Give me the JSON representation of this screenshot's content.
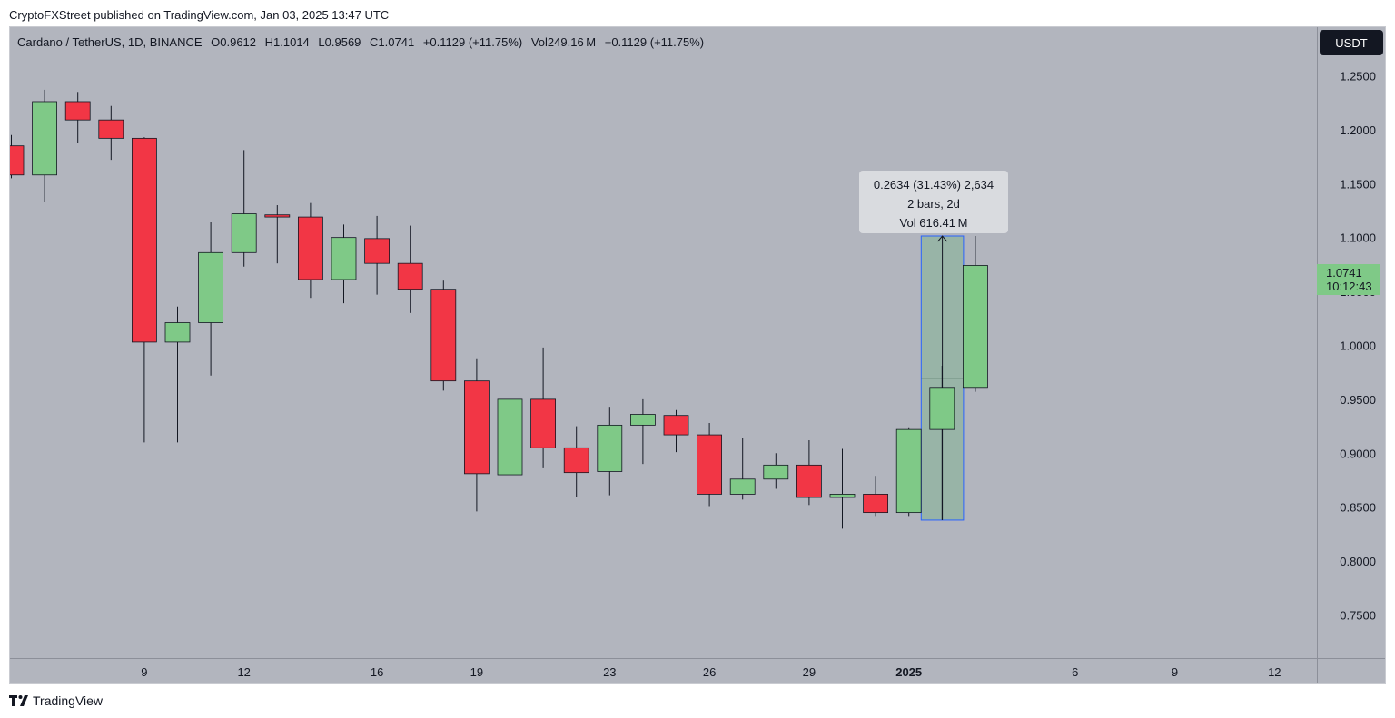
{
  "header": {
    "published_text": "CryptoFXStreet published on TradingView.com, Jan 03, 2025 13:47 UTC"
  },
  "legend": {
    "symbol": "Cardano / TetherUS, 1D, BINANCE",
    "open": "O0.9612",
    "high": "H1.1014",
    "low": "L0.9569",
    "close": "C1.0741",
    "change": "+0.1129 (+11.75%)",
    "volume": "Vol249.16 M",
    "volume_change": "+0.1129 (+11.75%)"
  },
  "currency_button": {
    "label": "USDT"
  },
  "last_price": {
    "value": "1.0741",
    "countdown": "10:12:43"
  },
  "measure_tool": {
    "line1": "0.2634 (31.43%) 2,634",
    "line2": "2 bars, 2d",
    "line3": "Vol 616.41 M"
  },
  "footer": {
    "brand": "TradingView"
  },
  "colors": {
    "background": "#b2b5be",
    "up": "#7fc987",
    "down": "#f23645",
    "wick": "#131722",
    "measure_fill": "#8fb49f",
    "measure_border": "#2962ff"
  },
  "chart_data": {
    "type": "candlestick",
    "title": "Cardano / TetherUS, 1D, BINANCE",
    "y_range": [
      0.71,
      1.295
    ],
    "y_ticks": [
      "1.2500",
      "1.2000",
      "1.1500",
      "1.1000",
      "1.0500",
      "1.0000",
      "0.9500",
      "0.9000",
      "0.8500",
      "0.8000",
      "0.7500"
    ],
    "x_tick_labels": [
      {
        "label": "9",
        "index": 4,
        "bold": false
      },
      {
        "label": "12",
        "index": 7,
        "bold": false
      },
      {
        "label": "16",
        "index": 11,
        "bold": false
      },
      {
        "label": "19",
        "index": 14,
        "bold": false
      },
      {
        "label": "23",
        "index": 18,
        "bold": false
      },
      {
        "label": "26",
        "index": 21,
        "bold": false
      },
      {
        "label": "29",
        "index": 24,
        "bold": false
      },
      {
        "label": "2025",
        "index": 27,
        "bold": true
      },
      {
        "label": "6",
        "index": 32,
        "bold": false
      },
      {
        "label": "9",
        "index": 35,
        "bold": false
      },
      {
        "label": "12",
        "index": 38,
        "bold": false
      }
    ],
    "candles": [
      {
        "open": 1.185,
        "high": 1.195,
        "low": 1.155,
        "close": 1.158
      },
      {
        "open": 1.158,
        "high": 1.237,
        "low": 1.133,
        "close": 1.226
      },
      {
        "open": 1.226,
        "high": 1.235,
        "low": 1.188,
        "close": 1.209
      },
      {
        "open": 1.209,
        "high": 1.222,
        "low": 1.172,
        "close": 1.192
      },
      {
        "open": 1.192,
        "high": 1.193,
        "low": 0.91,
        "close": 1.003
      },
      {
        "open": 1.003,
        "high": 1.036,
        "low": 0.91,
        "close": 1.021
      },
      {
        "open": 1.021,
        "high": 1.114,
        "low": 0.972,
        "close": 1.086
      },
      {
        "open": 1.086,
        "high": 1.181,
        "low": 1.073,
        "close": 1.122
      },
      {
        "open": 1.121,
        "high": 1.13,
        "low": 1.076,
        "close": 1.119
      },
      {
        "open": 1.119,
        "high": 1.132,
        "low": 1.044,
        "close": 1.061
      },
      {
        "open": 1.061,
        "high": 1.112,
        "low": 1.039,
        "close": 1.1
      },
      {
        "open": 1.099,
        "high": 1.12,
        "low": 1.047,
        "close": 1.076
      },
      {
        "open": 1.076,
        "high": 1.111,
        "low": 1.03,
        "close": 1.052
      },
      {
        "open": 1.052,
        "high": 1.06,
        "low": 0.958,
        "close": 0.967
      },
      {
        "open": 0.967,
        "high": 0.988,
        "low": 0.846,
        "close": 0.881
      },
      {
        "open": 0.88,
        "high": 0.959,
        "low": 0.761,
        "close": 0.95
      },
      {
        "open": 0.95,
        "high": 0.998,
        "low": 0.886,
        "close": 0.905
      },
      {
        "open": 0.905,
        "high": 0.925,
        "low": 0.859,
        "close": 0.882
      },
      {
        "open": 0.883,
        "high": 0.943,
        "low": 0.861,
        "close": 0.926
      },
      {
        "open": 0.926,
        "high": 0.95,
        "low": 0.89,
        "close": 0.936
      },
      {
        "open": 0.935,
        "high": 0.94,
        "low": 0.901,
        "close": 0.917
      },
      {
        "open": 0.917,
        "high": 0.928,
        "low": 0.851,
        "close": 0.862
      },
      {
        "open": 0.862,
        "high": 0.914,
        "low": 0.857,
        "close": 0.876
      },
      {
        "open": 0.876,
        "high": 0.9,
        "low": 0.867,
        "close": 0.889
      },
      {
        "open": 0.889,
        "high": 0.912,
        "low": 0.852,
        "close": 0.859
      },
      {
        "open": 0.859,
        "high": 0.904,
        "low": 0.83,
        "close": 0.862
      },
      {
        "open": 0.862,
        "high": 0.879,
        "low": 0.841,
        "close": 0.845
      },
      {
        "open": 0.845,
        "high": 0.924,
        "low": 0.841,
        "close": 0.922
      },
      {
        "open": 0.922,
        "high": 0.981,
        "low": 0.838,
        "close": 0.961
      },
      {
        "open": 0.961,
        "high": 1.1014,
        "low": 0.9569,
        "close": 1.0741
      }
    ],
    "measure_range": {
      "from_index": 28,
      "to_index": 29,
      "low": 0.838,
      "high": 1.1014,
      "mid": 0.969
    }
  }
}
